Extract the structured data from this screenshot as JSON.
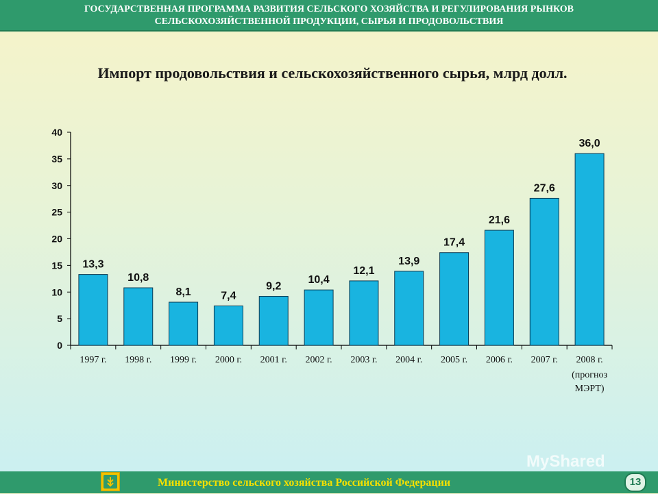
{
  "header": {
    "line1": "ГОСУДАРСТВЕННАЯ ПРОГРАММА РАЗВИТИЯ СЕЛЬСКОГО ХОЗЯЙСТВА И РЕГУЛИРОВАНИЯ РЫНКОВ",
    "line2": "СЕЛЬСКОХОЗЯЙСТВЕННОЙ ПРОДУКЦИИ, СЫРЬЯ И ПРОДОВОЛЬСТВИЯ"
  },
  "footer": {
    "text": "Министерство сельского хозяйства Российской Федерации",
    "page_number": "13",
    "watermark": "MyShared",
    "logo_icon": "ministry-emblem-icon"
  },
  "colors": {
    "header_bg": "#2f9a6c",
    "bar": "#19b4e0",
    "footer_text": "#f5e000"
  },
  "chart_data": {
    "type": "bar",
    "title": "Импорт продовольствия и сельскохозяйственного сырья, млрд долл.",
    "categories": [
      "1997 г.",
      "1998 г.",
      "1999 г.",
      "2000 г.",
      "2001 г.",
      "2002 г.",
      "2003 г.",
      "2004 г.",
      "2005 г.",
      "2006 г.",
      "2007 г.",
      "2008 г."
    ],
    "category_notes": [
      "",
      "",
      "",
      "",
      "",
      "",
      "",
      "",
      "",
      "",
      "",
      "(прогноз МЭРТ)"
    ],
    "values": [
      13.3,
      10.8,
      8.1,
      7.4,
      9.2,
      10.4,
      12.1,
      13.9,
      17.4,
      21.6,
      27.6,
      36.0
    ],
    "value_labels": [
      "13,3",
      "10,8",
      "8,1",
      "7,4",
      "9,2",
      "10,4",
      "12,1",
      "13,9",
      "17,4",
      "21,6",
      "27,6",
      "36,0"
    ],
    "yticks": [
      0,
      5,
      10,
      15,
      20,
      25,
      30,
      35,
      40
    ],
    "ylim": [
      0,
      40
    ],
    "grid": false,
    "legend": "none"
  }
}
